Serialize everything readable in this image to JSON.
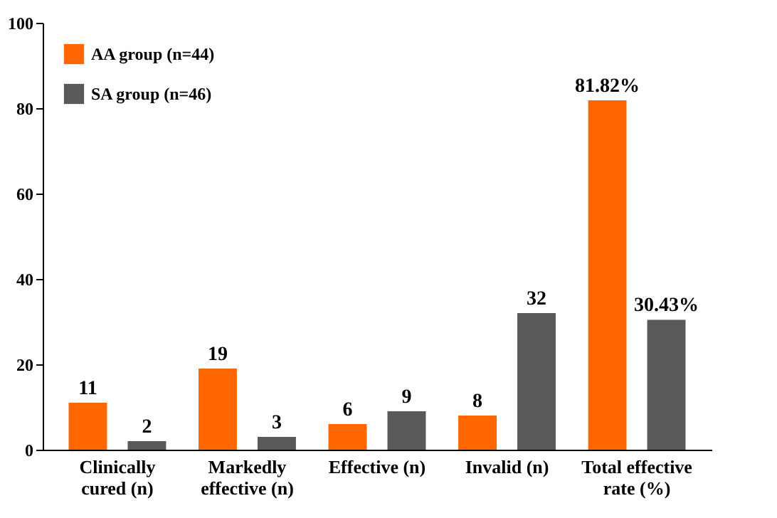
{
  "chart_data": {
    "type": "bar",
    "categories": [
      "Clinically cured (n)",
      "Markedly effective (n)",
      "Effective (n)",
      "Invalid (n)",
      "Total effective rate (%)"
    ],
    "series": [
      {
        "name": "AA group (n=44)",
        "color": "#ff6600",
        "values": [
          11,
          19,
          6,
          8,
          81.82
        ],
        "value_labels": [
          "11",
          "19",
          "6",
          "8",
          "81.82%"
        ]
      },
      {
        "name": "SA group (n=46)",
        "color": "#595959",
        "values": [
          2,
          3,
          9,
          32,
          30.43
        ],
        "value_labels": [
          "2",
          "3",
          "9",
          "32",
          "30.43%"
        ]
      }
    ],
    "ylim": [
      0,
      100
    ],
    "yticks": [
      0,
      20,
      40,
      60,
      80,
      100
    ],
    "grid": false,
    "legend": "top left"
  }
}
